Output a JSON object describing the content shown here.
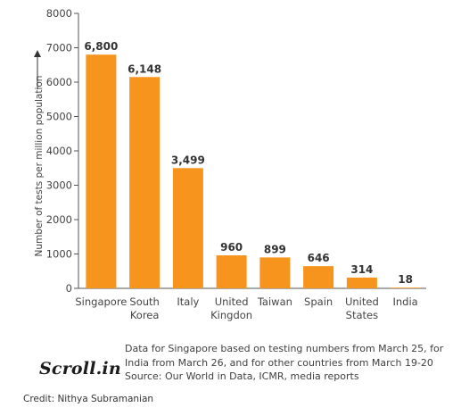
{
  "chart_data": {
    "type": "bar",
    "categories": [
      "Singapore",
      "South Korea",
      "Italy",
      "United Kingdon",
      "Taiwan",
      "Spain",
      "United States",
      "India"
    ],
    "category_lines": [
      [
        "Singapore"
      ],
      [
        "South",
        "Korea"
      ],
      [
        "Italy"
      ],
      [
        "United",
        "Kingdon"
      ],
      [
        "Taiwan"
      ],
      [
        "Spain"
      ],
      [
        "United",
        "States"
      ],
      [
        "India"
      ]
    ],
    "values": [
      6800,
      6148,
      3499,
      960,
      899,
      646,
      314,
      18
    ],
    "value_labels": [
      "6,800",
      "6,148",
      "3,499",
      "960",
      "899",
      "646",
      "314",
      "18"
    ],
    "ylabel": "Number of tests per million population",
    "yticks": [
      0,
      1000,
      2000,
      3000,
      4000,
      5000,
      6000,
      7000,
      8000
    ],
    "ylim": [
      0,
      8000
    ],
    "grid": false,
    "bar_color": "#F7941D"
  },
  "notes": {
    "line1": "Data for Singapore based on testing numbers from March 25, for",
    "line2": "India from March 26, and for other countries from March 19-20",
    "line3": "Source:  Our World in Data, ICMR, media reports"
  },
  "logo_text": "Scroll.in",
  "credit": "Credit: Nithya Subramanian"
}
